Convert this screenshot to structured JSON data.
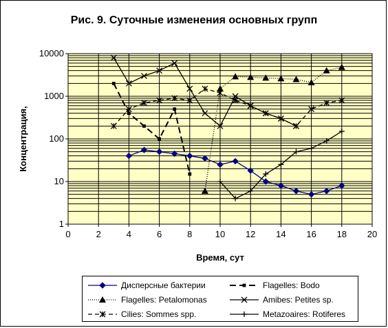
{
  "chart_data": {
    "type": "line",
    "title": "Рис. 9. Суточные изменения основных групп",
    "xlabel": "Время, сут",
    "ylabel": "Концентрация,",
    "xlim": [
      0,
      20
    ],
    "xticks": [
      0,
      2,
      4,
      6,
      8,
      10,
      12,
      14,
      16,
      18,
      20
    ],
    "ylim": [
      1,
      10000
    ],
    "yscale": "log",
    "yticks": [
      1,
      10,
      100,
      1000,
      10000
    ],
    "grid": true,
    "legend_position": "bottom",
    "series": [
      {
        "name": "Дисперсные бактерии",
        "color": "#000080",
        "marker": "diamond",
        "dash": "solid",
        "x": [
          4,
          5,
          6,
          7,
          8,
          9,
          10,
          11,
          12,
          13,
          14,
          15,
          16,
          17,
          18
        ],
        "y": [
          40,
          55,
          50,
          45,
          40,
          35,
          25,
          30,
          18,
          10,
          8,
          6,
          5,
          6,
          8
        ]
      },
      {
        "name": "Flagelles: Bodo",
        "color": "#000000",
        "marker": "square",
        "dash": "long-dash",
        "x": [
          3,
          4,
          5,
          6,
          7,
          8
        ],
        "y": [
          2000,
          400,
          200,
          100,
          500,
          15
        ]
      },
      {
        "name": "Flagelles: Petalomonas",
        "color": "#000000",
        "marker": "triangle",
        "dash": "dotted",
        "x": [
          9,
          10,
          11,
          12,
          13,
          14,
          15,
          16,
          17,
          18
        ],
        "y": [
          6,
          1500,
          2900,
          2800,
          2700,
          2600,
          2500,
          2100,
          4000,
          4800
        ]
      },
      {
        "name": "Amibes: Petites sp.",
        "color": "#000000",
        "marker": "x",
        "dash": "solid",
        "x": [
          3,
          4,
          5,
          6,
          7,
          8,
          9,
          10,
          11,
          12,
          13,
          14,
          15
        ],
        "y": [
          8000,
          2000,
          3000,
          4000,
          6000,
          1500,
          400,
          200,
          1000,
          600,
          400,
          300,
          200
        ]
      },
      {
        "name": "Cilies: Sommes spp.",
        "color": "#000000",
        "marker": "star",
        "dash": "dash",
        "x": [
          3,
          4,
          5,
          6,
          7,
          8,
          9,
          10,
          11,
          12,
          13,
          14,
          15,
          16,
          17,
          18
        ],
        "y": [
          200,
          500,
          700,
          800,
          900,
          800,
          1500,
          1200,
          800,
          600,
          400,
          300,
          200,
          500,
          700,
          800
        ]
      },
      {
        "name": "Metazoaires: Rotiferes",
        "color": "#000000",
        "marker": "plus",
        "dash": "solid",
        "x": [
          10,
          11,
          12,
          13,
          14,
          15,
          16,
          17,
          18
        ],
        "y": [
          10,
          4,
          6,
          15,
          25,
          50,
          60,
          90,
          150
        ]
      }
    ]
  }
}
